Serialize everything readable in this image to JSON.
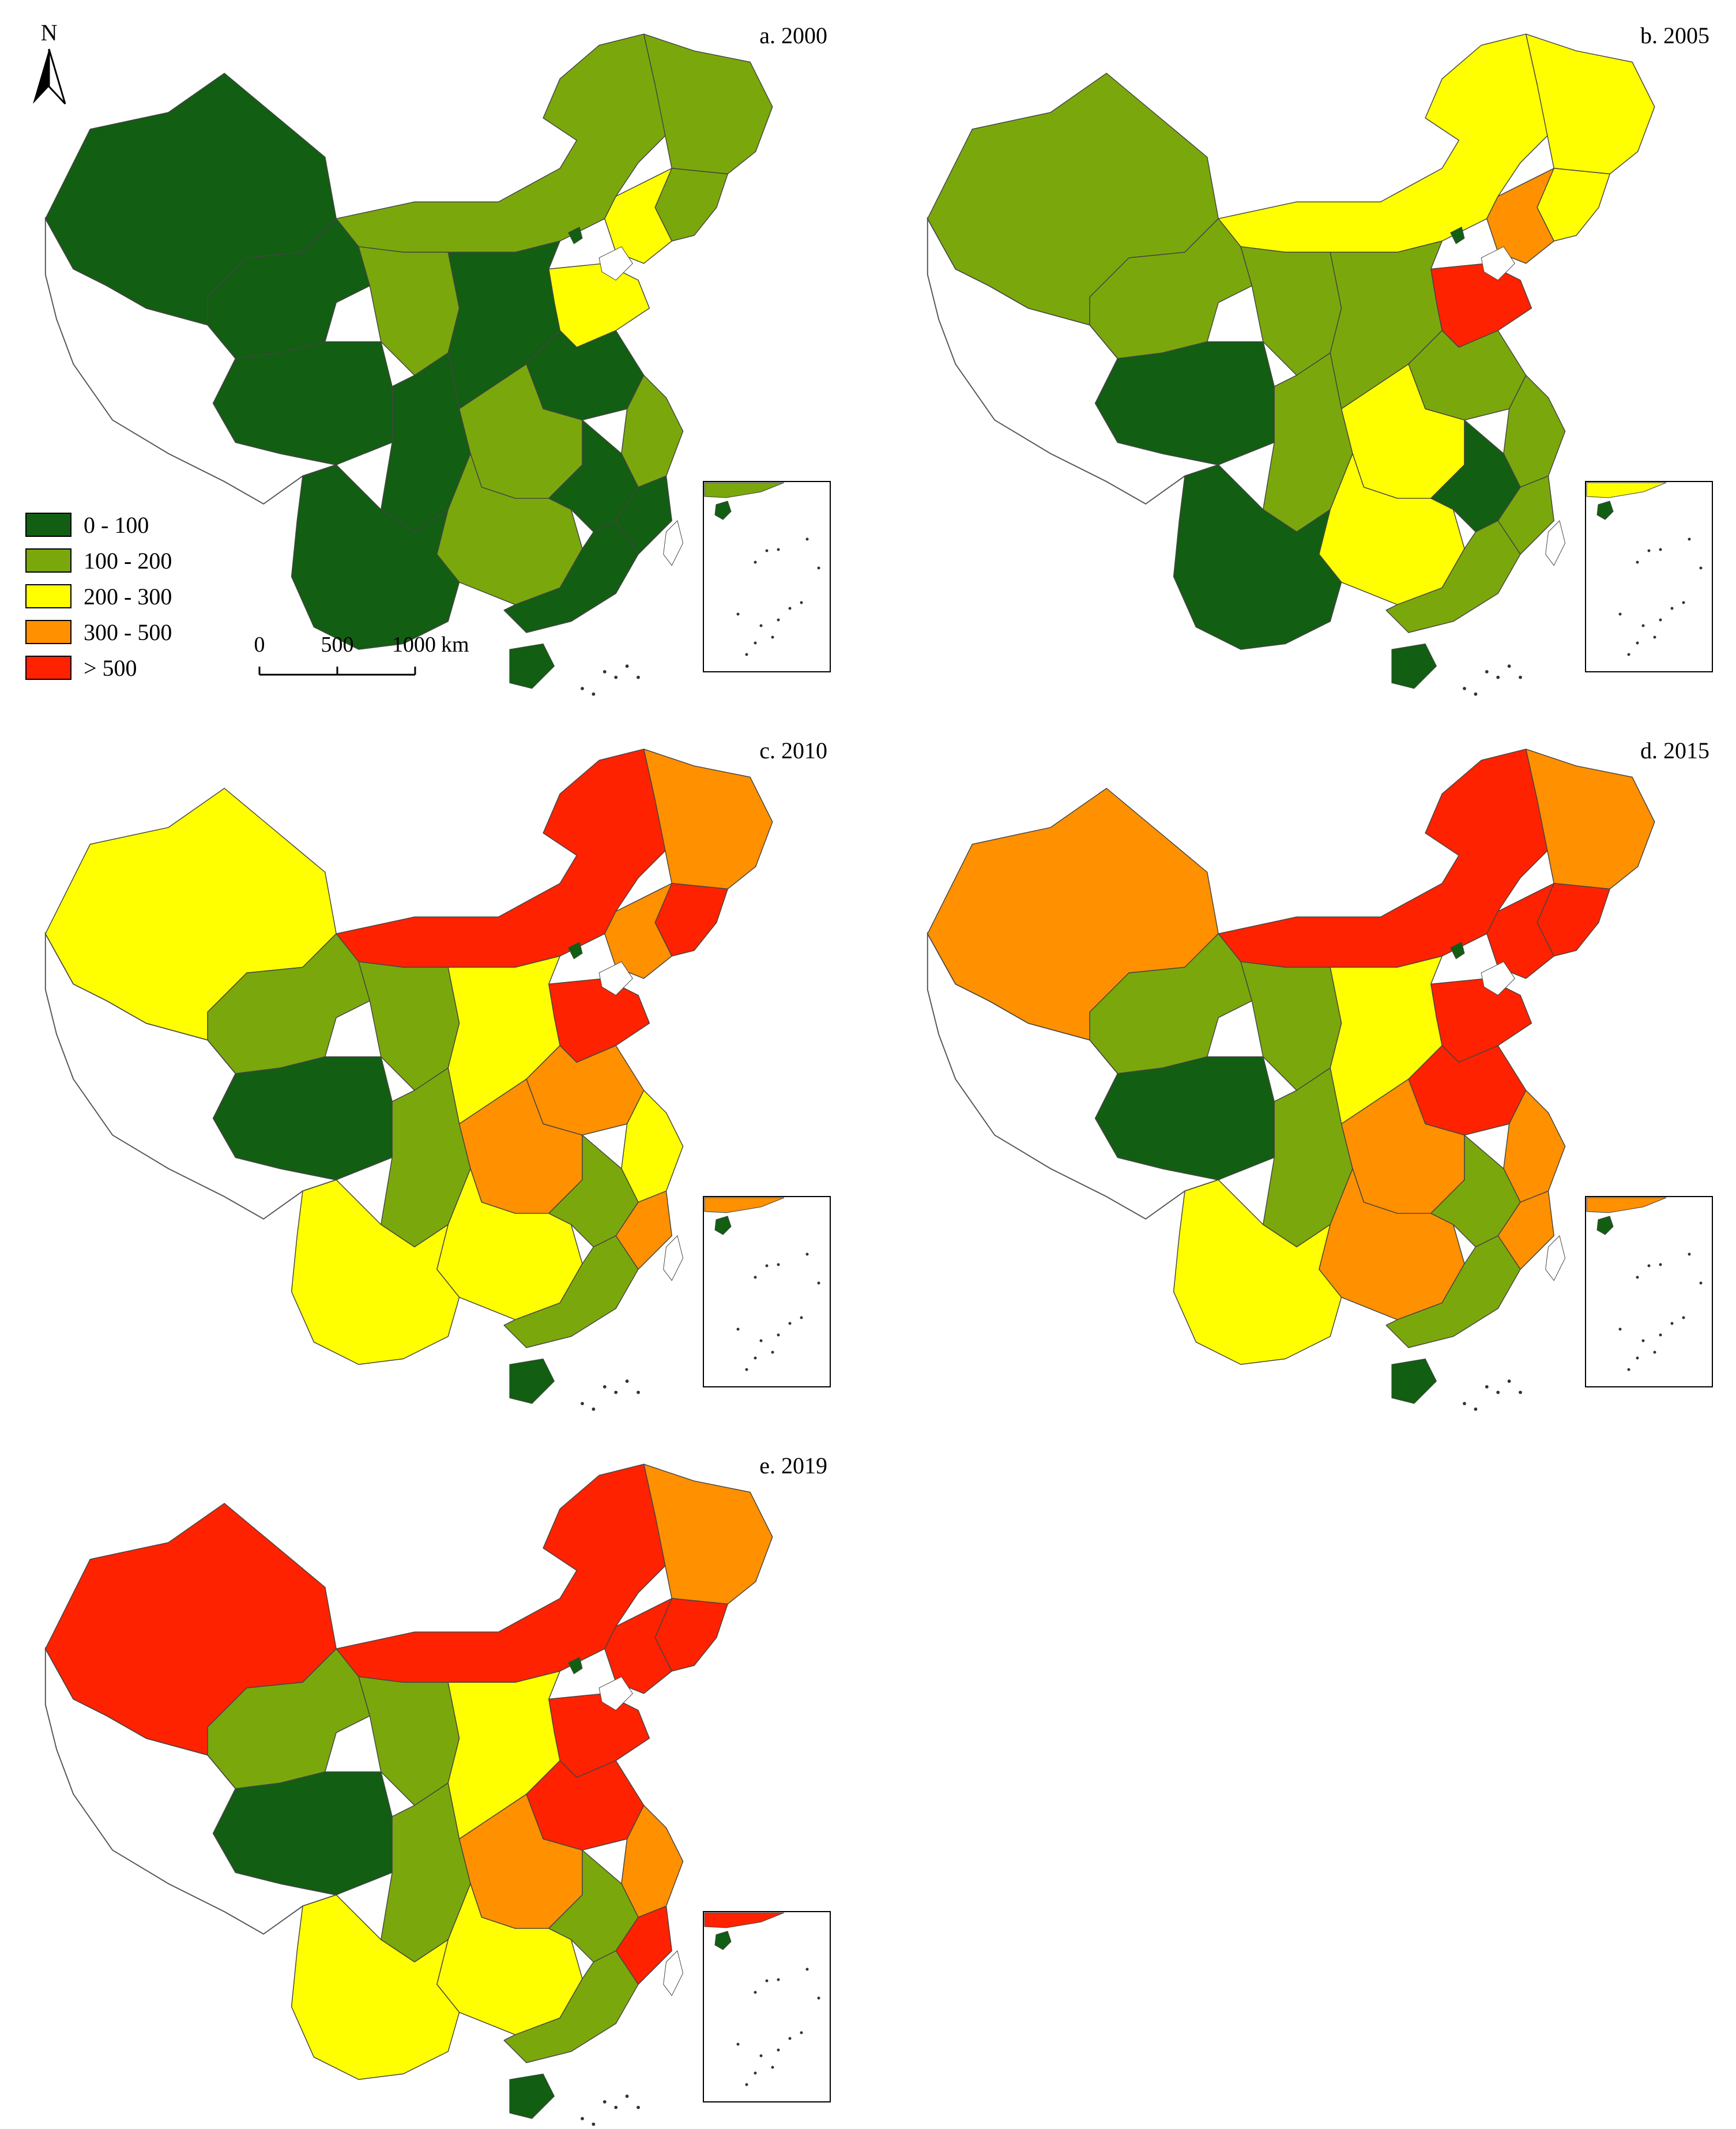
{
  "north_arrow": {
    "label": "N"
  },
  "legend": {
    "items": [
      {
        "label": "0 - 100",
        "color": "#125e12"
      },
      {
        "label": "100 - 200",
        "color": "#7aa80c"
      },
      {
        "label": "200 - 300",
        "color": "#ffff00"
      },
      {
        "label": "300 - 500",
        "color": "#ff9000"
      },
      {
        "label": "> 500",
        "color": "#ff2200"
      }
    ]
  },
  "scale_bar": {
    "labels": [
      "0",
      "500",
      "1000"
    ],
    "unit": "km"
  },
  "panels": [
    {
      "title": "a. 2000",
      "region_classes": [
        "0 - 100",
        "100 - 200",
        "0 - 100",
        "100 - 200",
        "100 - 200",
        "200 - 300",
        "200 - 300",
        "0 - 100",
        "100 - 200",
        "0 - 100",
        "0 - 100",
        "100 - 200",
        "0 - 100",
        "100 - 200",
        "0 - 100",
        "0 - 100",
        "100 - 200",
        "0 - 100",
        "0 - 100"
      ],
      "hainan_class": "0 - 100",
      "inset_class": "100 - 200"
    },
    {
      "title": "b. 2005",
      "region_classes": [
        "100 - 200",
        "200 - 300",
        "100 - 200",
        "200 - 300",
        "200 - 300",
        "300 - 500",
        "> 500",
        "0 - 100",
        "100 - 200",
        "100 - 200",
        "100 - 200",
        "100 - 200",
        "100 - 200",
        "200 - 300",
        "0 - 100",
        "100 - 200",
        "200 - 300",
        "0 - 100",
        "100 - 200"
      ],
      "hainan_class": "0 - 100",
      "inset_class": "200 - 300"
    },
    {
      "title": "c. 2010",
      "region_classes": [
        "200 - 300",
        "> 500",
        "100 - 200",
        "300 - 500",
        "> 500",
        "300 - 500",
        "> 500",
        "0 - 100",
        "100 - 200",
        "200 - 300",
        "300 - 500",
        "200 - 300",
        "100 - 200",
        "300 - 500",
        "100 - 200",
        "300 - 500",
        "200 - 300",
        "200 - 300",
        "100 - 200"
      ],
      "hainan_class": "0 - 100",
      "inset_class": "300 - 500"
    },
    {
      "title": "d. 2015",
      "region_classes": [
        "300 - 500",
        "> 500",
        "100 - 200",
        "300 - 500",
        "> 500",
        "> 500",
        "> 500",
        "0 - 100",
        "100 - 200",
        "200 - 300",
        "> 500",
        "300 - 500",
        "100 - 200",
        "300 - 500",
        "100 - 200",
        "300 - 500",
        "300 - 500",
        "200 - 300",
        "100 - 200"
      ],
      "hainan_class": "0 - 100",
      "inset_class": "300 - 500"
    },
    {
      "title": "e. 2019",
      "region_classes": [
        "> 500",
        "> 500",
        "100 - 200",
        "300 - 500",
        "> 500",
        "> 500",
        "> 500",
        "0 - 100",
        "100 - 200",
        "200 - 300",
        "> 500",
        "300 - 500",
        "100 - 200",
        "300 - 500",
        "100 - 200",
        "> 500",
        "200 - 300",
        "200 - 300",
        "100 - 200"
      ],
      "hainan_class": "0 - 100",
      "inset_class": "> 500"
    }
  ]
}
